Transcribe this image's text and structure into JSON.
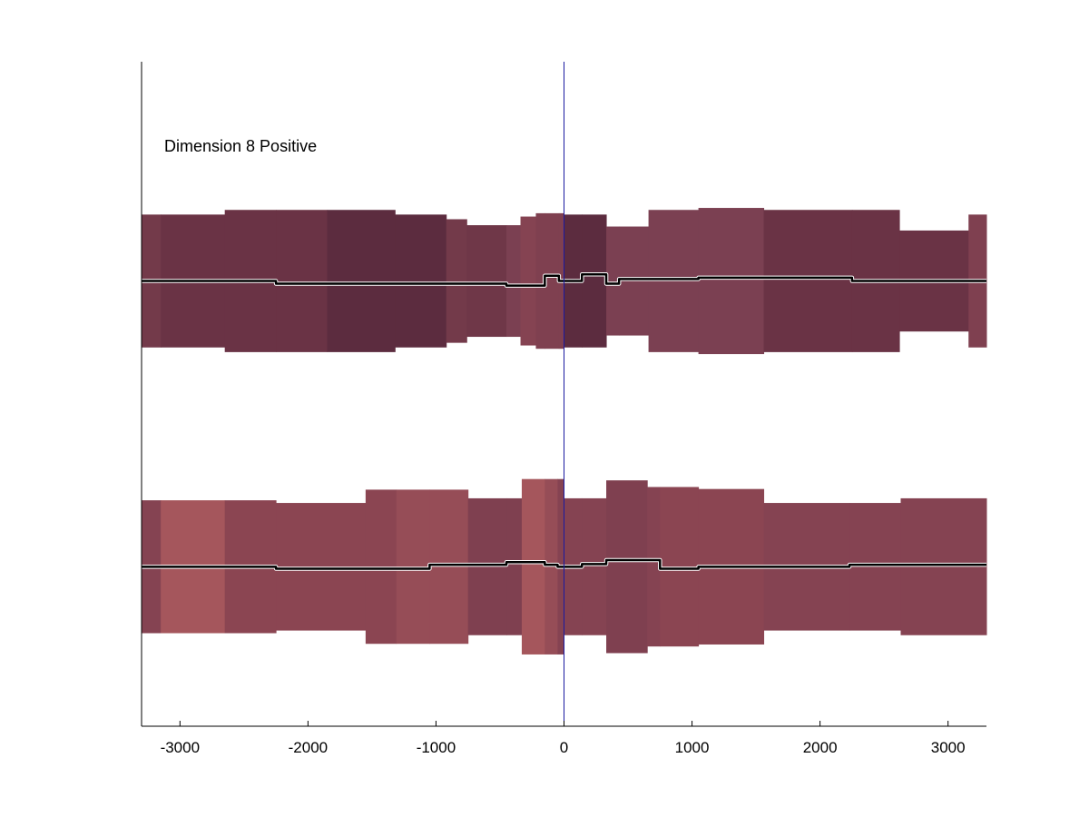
{
  "chart_data": {
    "type": "area",
    "title": "",
    "xlabel": "",
    "ylabel": "",
    "xlim": [
      -3300,
      3300
    ],
    "ylim": [
      0,
      10
    ],
    "xticks": [
      -3000,
      -2000,
      -1000,
      0,
      1000,
      2000,
      3000
    ],
    "x_tick_labels": [
      "-3000",
      "-2000",
      "-1000",
      "0",
      "1000",
      "2000",
      "3000"
    ],
    "annotation": "Dimension 8 Positive",
    "reference_line_x": 0,
    "reference_line_color": "#1a1aa0",
    "grid": false,
    "legend": "none",
    "series": [
      {
        "center": 6.7,
        "segments": [
          {
            "x0": -3300,
            "x1": -3150,
            "half": 1.0,
            "offset": 0.0,
            "color": "#733a4a"
          },
          {
            "x0": -3150,
            "x1": -2650,
            "half": 1.0,
            "offset": 0.0,
            "color": "#6a3345"
          },
          {
            "x0": -2650,
            "x1": -2250,
            "half": 1.07,
            "offset": 0.0,
            "color": "#6a3345"
          },
          {
            "x0": -2250,
            "x1": -1850,
            "half": 1.07,
            "offset": -0.04,
            "color": "#6a3345"
          },
          {
            "x0": -1850,
            "x1": -1320,
            "half": 1.07,
            "offset": -0.04,
            "color": "#5c2c3f"
          },
          {
            "x0": -1320,
            "x1": -920,
            "half": 1.0,
            "offset": -0.04,
            "color": "#5c2c3f"
          },
          {
            "x0": -920,
            "x1": -760,
            "half": 0.93,
            "offset": -0.04,
            "color": "#733a4a"
          },
          {
            "x0": -760,
            "x1": -450,
            "half": 0.84,
            "offset": -0.04,
            "color": "#6f3748"
          },
          {
            "x0": -450,
            "x1": -340,
            "half": 0.84,
            "offset": -0.07,
            "color": "#7b4052"
          },
          {
            "x0": -340,
            "x1": -220,
            "half": 0.97,
            "offset": -0.07,
            "color": "#854352"
          },
          {
            "x0": -220,
            "x1": -150,
            "half": 1.02,
            "offset": -0.07,
            "color": "#7f4050"
          },
          {
            "x0": -150,
            "x1": -40,
            "half": 1.02,
            "offset": 0.08,
            "color": "#7f4050"
          },
          {
            "x0": -40,
            "x1": 0,
            "half": 1.02,
            "offset": 0.0,
            "color": "#7f4050"
          },
          {
            "x0": 0,
            "x1": 140,
            "half": 1.0,
            "offset": 0.0,
            "color": "#5c2c3f"
          },
          {
            "x0": 140,
            "x1": 330,
            "half": 1.0,
            "offset": 0.1,
            "color": "#5c2c3f"
          },
          {
            "x0": 330,
            "x1": 430,
            "half": 0.82,
            "offset": -0.04,
            "color": "#7b4052"
          },
          {
            "x0": 430,
            "x1": 660,
            "half": 0.82,
            "offset": 0.03,
            "color": "#7b4052"
          },
          {
            "x0": 660,
            "x1": 1050,
            "half": 1.07,
            "offset": 0.03,
            "color": "#7b4052"
          },
          {
            "x0": 1050,
            "x1": 1560,
            "half": 1.1,
            "offset": 0.05,
            "color": "#7b4052"
          },
          {
            "x0": 1560,
            "x1": 2250,
            "half": 1.07,
            "offset": 0.05,
            "color": "#6a3345"
          },
          {
            "x0": 2250,
            "x1": 2620,
            "half": 1.07,
            "offset": 0.0,
            "color": "#6a3345"
          },
          {
            "x0": 2620,
            "x1": 3160,
            "half": 0.76,
            "offset": 0.0,
            "color": "#6a3345"
          },
          {
            "x0": 3160,
            "x1": 3300,
            "half": 1.0,
            "offset": 0.0,
            "color": "#7f4050"
          }
        ]
      },
      {
        "center": 2.4,
        "segments": [
          {
            "x0": -3300,
            "x1": -3150,
            "half": 1.0,
            "offset": 0.0,
            "color": "#854352"
          },
          {
            "x0": -3150,
            "x1": -2650,
            "half": 1.0,
            "offset": 0.0,
            "color": "#a5565c"
          },
          {
            "x0": -2650,
            "x1": -2250,
            "half": 1.0,
            "offset": 0.0,
            "color": "#8b4552"
          },
          {
            "x0": -2250,
            "x1": -1550,
            "half": 0.96,
            "offset": -0.03,
            "color": "#8b4552"
          },
          {
            "x0": -1550,
            "x1": -1310,
            "half": 1.16,
            "offset": -0.03,
            "color": "#8b4552"
          },
          {
            "x0": -1310,
            "x1": -1050,
            "half": 1.16,
            "offset": -0.03,
            "color": "#964d57"
          },
          {
            "x0": -1050,
            "x1": -750,
            "half": 1.16,
            "offset": 0.03,
            "color": "#964d57"
          },
          {
            "x0": -750,
            "x1": -450,
            "half": 1.03,
            "offset": 0.03,
            "color": "#7f4050"
          },
          {
            "x0": -450,
            "x1": -330,
            "half": 1.03,
            "offset": 0.07,
            "color": "#7f4050"
          },
          {
            "x0": -330,
            "x1": -150,
            "half": 1.32,
            "offset": 0.07,
            "color": "#a5565c"
          },
          {
            "x0": -150,
            "x1": -50,
            "half": 1.32,
            "offset": 0.03,
            "color": "#964d57"
          },
          {
            "x0": -50,
            "x1": 0,
            "half": 1.32,
            "offset": 0.0,
            "color": "#854352"
          },
          {
            "x0": 0,
            "x1": 140,
            "half": 1.03,
            "offset": 0.0,
            "color": "#854352"
          },
          {
            "x0": 140,
            "x1": 330,
            "half": 1.03,
            "offset": 0.04,
            "color": "#854352"
          },
          {
            "x0": 330,
            "x1": 650,
            "half": 1.3,
            "offset": 0.1,
            "color": "#7f4050"
          },
          {
            "x0": 650,
            "x1": 750,
            "half": 1.2,
            "offset": 0.1,
            "color": "#854352"
          },
          {
            "x0": 750,
            "x1": 1050,
            "half": 1.2,
            "offset": -0.03,
            "color": "#8b4552"
          },
          {
            "x0": 1050,
            "x1": 1560,
            "half": 1.17,
            "offset": 0.0,
            "color": "#8b4552"
          },
          {
            "x0": 1560,
            "x1": 2230,
            "half": 0.96,
            "offset": 0.0,
            "color": "#854352"
          },
          {
            "x0": 2230,
            "x1": 2630,
            "half": 0.96,
            "offset": 0.03,
            "color": "#854352"
          },
          {
            "x0": 2630,
            "x1": 3300,
            "half": 1.03,
            "offset": 0.03,
            "color": "#854352"
          }
        ]
      }
    ]
  }
}
